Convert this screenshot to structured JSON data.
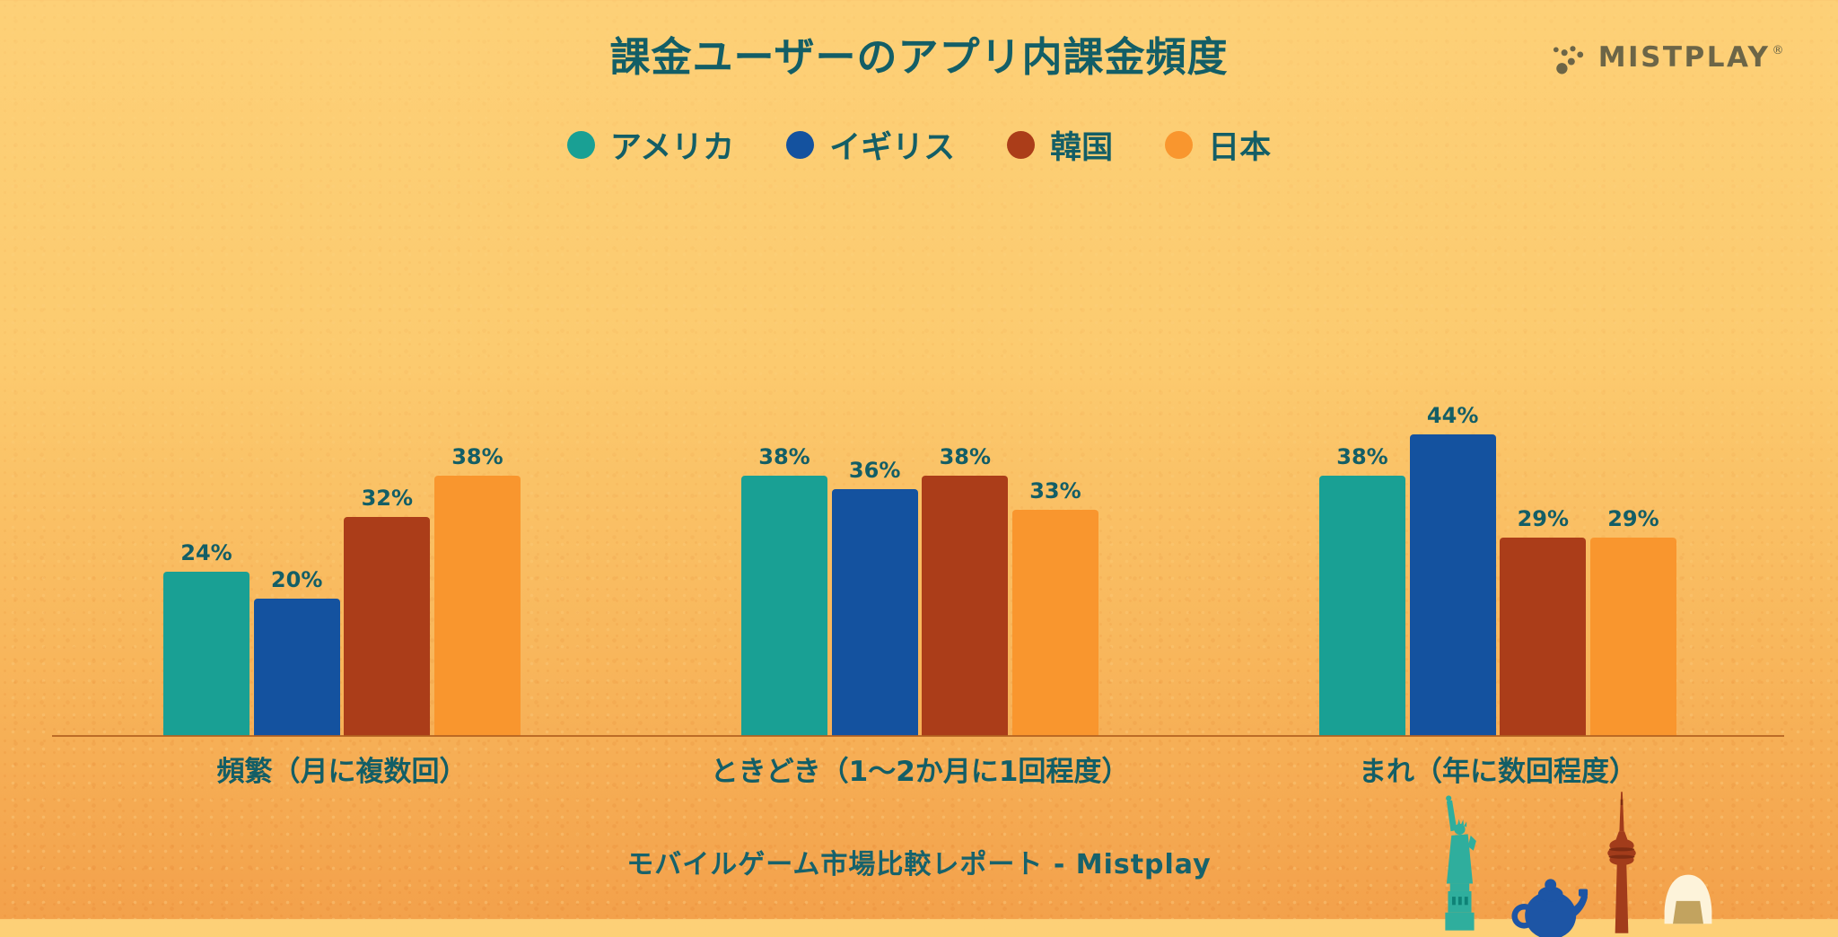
{
  "chart_data": {
    "type": "bar",
    "title": "課金ユーザーのアプリ内課金頻度",
    "categories": [
      "頻繁（月に複数回）",
      "ときどき（1〜2か月に1回程度）",
      "まれ（年に数回程度）"
    ],
    "series": [
      {
        "name": "アメリカ",
        "color": "#19a094",
        "values": [
          24,
          38,
          38
        ]
      },
      {
        "name": "イギリス",
        "color": "#14529f",
        "values": [
          20,
          36,
          44
        ]
      },
      {
        "name": "韓国",
        "color": "#ab3d19",
        "values": [
          32,
          38,
          29
        ]
      },
      {
        "name": "日本",
        "color": "#f9962e",
        "values": [
          38,
          33,
          29
        ]
      }
    ],
    "value_suffix": "%",
    "value_labels": true,
    "ylim": [
      0,
      50
    ],
    "grid": false,
    "legend_position": "top",
    "xlabel": "",
    "ylabel": ""
  },
  "logo": {
    "text": "MISTPLAY",
    "registered_mark": "®",
    "icon": "mistplay-dots-icon",
    "color": "#6c6547"
  },
  "footer": {
    "caption": "モバイルゲーム市場比較レポート - Mistplay"
  },
  "decorations": {
    "items": [
      "statue-of-liberty",
      "uk-teapot",
      "n-seoul-tower",
      "onigiri"
    ],
    "colors": {
      "statue": "#2fae9d",
      "statue_window": "#0e8276",
      "teapot": "#1d55a5",
      "tower": "#a23c1b",
      "tower_ridge": "#7e2c12",
      "onigiri_body": "#fdf3da",
      "onigiri_nori": "#c2a35f"
    }
  },
  "theme": {
    "text_color": "#135e66",
    "background_top": "#fdd077",
    "background_bottom": "#f3a14b",
    "axis_line_color": "#b2601f"
  }
}
